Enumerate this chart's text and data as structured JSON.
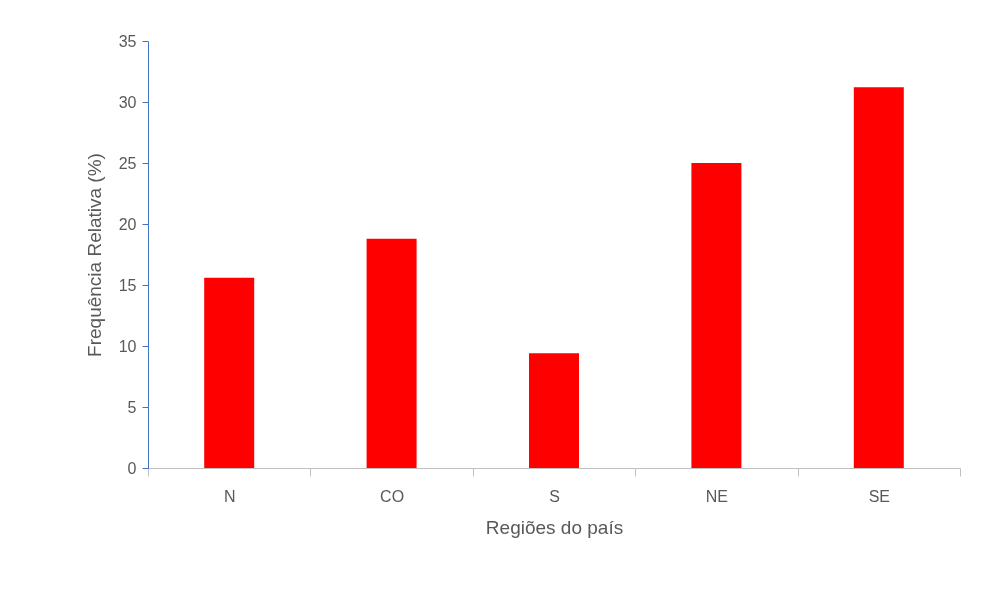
{
  "chart_data": {
    "type": "bar",
    "xlabel": "Regiões do país",
    "ylabel": "Frequência Relativa (%)",
    "categories": [
      "N",
      "CO",
      "S",
      "NE",
      "SE"
    ],
    "values": [
      15.6,
      18.8,
      9.4,
      25,
      31.2
    ],
    "color": "#ff0000",
    "ylim": [
      0,
      35
    ],
    "yticks": [
      0,
      5,
      10,
      15,
      20,
      25,
      30,
      35
    ],
    "grid": false
  }
}
